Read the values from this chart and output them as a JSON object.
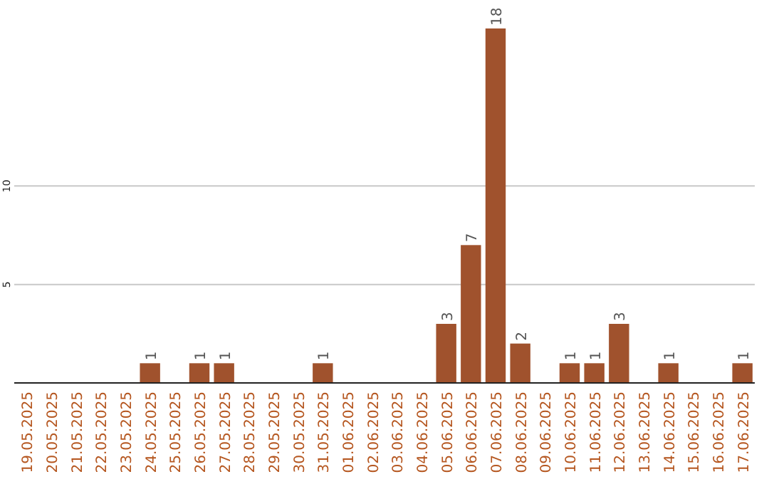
{
  "chart_data": {
    "type": "bar",
    "categories": [
      "19.05.2025",
      "20.05.2025",
      "21.05.2025",
      "22.05.2025",
      "23.05.2025",
      "24.05.2025",
      "25.05.2025",
      "26.05.2025",
      "27.05.2025",
      "28.05.2025",
      "29.05.2025",
      "30.05.2025",
      "31.05.2025",
      "01.06.2025",
      "02.06.2025",
      "03.06.2025",
      "04.06.2025",
      "05.06.2025",
      "06.06.2025",
      "07.06.2025",
      "08.06.2025",
      "09.06.2025",
      "10.06.2025",
      "11.06.2025",
      "12.06.2025",
      "13.06.2025",
      "14.06.2025",
      "15.06.2025",
      "16.06.2025",
      "17.06.2025"
    ],
    "values": [
      0,
      0,
      0,
      0,
      0,
      1,
      0,
      1,
      1,
      0,
      0,
      0,
      1,
      0,
      0,
      0,
      0,
      3,
      7,
      18,
      2,
      0,
      1,
      1,
      3,
      0,
      1,
      0,
      0,
      1
    ],
    "value_labels": [
      null,
      null,
      null,
      null,
      null,
      "1",
      null,
      "1",
      "1",
      null,
      null,
      null,
      "1",
      null,
      null,
      null,
      null,
      "3",
      "7",
      "18",
      "2",
      null,
      "1",
      "1",
      "3",
      null,
      "1",
      null,
      null,
      "1"
    ],
    "color": "#a0522d",
    "ylim": [
      0,
      18
    ],
    "yticks": [
      5,
      10
    ],
    "grid": "y"
  }
}
